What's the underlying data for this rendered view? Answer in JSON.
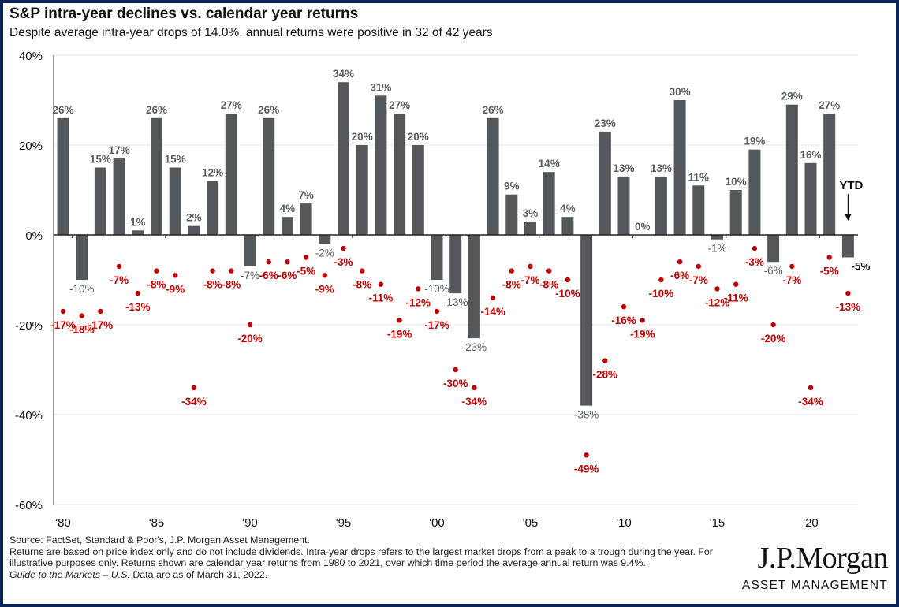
{
  "header": {
    "title": "S&P intra-year declines vs. calendar year returns",
    "subtitle": "Despite average intra-year drops of 14.0%, annual returns were positive in 32 of 42 years"
  },
  "chart_data": {
    "type": "bar",
    "title": "S&P intra-year declines vs. calendar year returns",
    "subtitle": "Despite average intra-year drops of 14.0%, annual returns were positive in 32 of 42 years",
    "xlabel": "",
    "ylabel": "",
    "ylim": [
      -60,
      40
    ],
    "yticks": [
      40,
      20,
      0,
      -20,
      -40,
      -60
    ],
    "ytick_labels": [
      "40%",
      "20%",
      "0%",
      "-20%",
      "-40%",
      "-60%"
    ],
    "xtick_years": [
      1980,
      1985,
      1990,
      1995,
      2000,
      2005,
      2010,
      2015,
      2020
    ],
    "xtick_labels": [
      "'80",
      "'85",
      "'90",
      "'95",
      "'00",
      "'05",
      "'10",
      "'15",
      "'20"
    ],
    "grid": true,
    "years": [
      1980,
      1981,
      1982,
      1983,
      1984,
      1985,
      1986,
      1987,
      1988,
      1989,
      1990,
      1991,
      1992,
      1993,
      1994,
      1995,
      1996,
      1997,
      1998,
      1999,
      2000,
      2001,
      2002,
      2003,
      2004,
      2005,
      2006,
      2007,
      2008,
      2009,
      2010,
      2011,
      2012,
      2013,
      2014,
      2015,
      2016,
      2017,
      2018,
      2019,
      2020,
      2021,
      2022
    ],
    "series": [
      {
        "name": "Calendar year return",
        "kind": "bar",
        "color": "#54585a",
        "values": [
          26,
          -10,
          15,
          17,
          1,
          26,
          15,
          2,
          12,
          27,
          -7,
          26,
          4,
          7,
          -2,
          34,
          20,
          31,
          27,
          20,
          -10,
          -13,
          -23,
          26,
          9,
          3,
          14,
          4,
          -38,
          23,
          13,
          0,
          13,
          30,
          11,
          -1,
          10,
          19,
          -6,
          29,
          16,
          27,
          -5
        ]
      },
      {
        "name": "Intra-year decline",
        "kind": "scatter",
        "color": "#c00000",
        "values": [
          -17,
          -18,
          -17,
          -7,
          -13,
          -8,
          -9,
          -34,
          -8,
          -8,
          -20,
          -6,
          -6,
          -5,
          -9,
          -3,
          -8,
          -11,
          -19,
          -12,
          -17,
          -30,
          -34,
          -14,
          -8,
          -7,
          -8,
          -10,
          -49,
          -28,
          -16,
          -19,
          -10,
          -6,
          -7,
          -12,
          -11,
          -3,
          -20,
          -7,
          -34,
          -5,
          -13
        ]
      }
    ],
    "annotations": [
      {
        "text": "YTD",
        "year": 2022,
        "arrow": "down"
      }
    ]
  },
  "footer": {
    "source": "Source: FactSet, Standard & Poor's, J.P. Morgan Asset Management.",
    "note": "Returns are based on price index only and do not include dividends. Intra-year drops refers to the largest market drops from a peak to a trough during the year. For illustrative purposes only. Returns shown are calendar year returns from 1980 to 2021, over which time period the average annual return was 9.4%.",
    "guide_italic": "Guide to the Markets – U.S.",
    "data_date": " Data are as of March 31, 2022."
  },
  "logo": {
    "brand": "J.P.Morgan",
    "sub": "ASSET MANAGEMENT"
  }
}
